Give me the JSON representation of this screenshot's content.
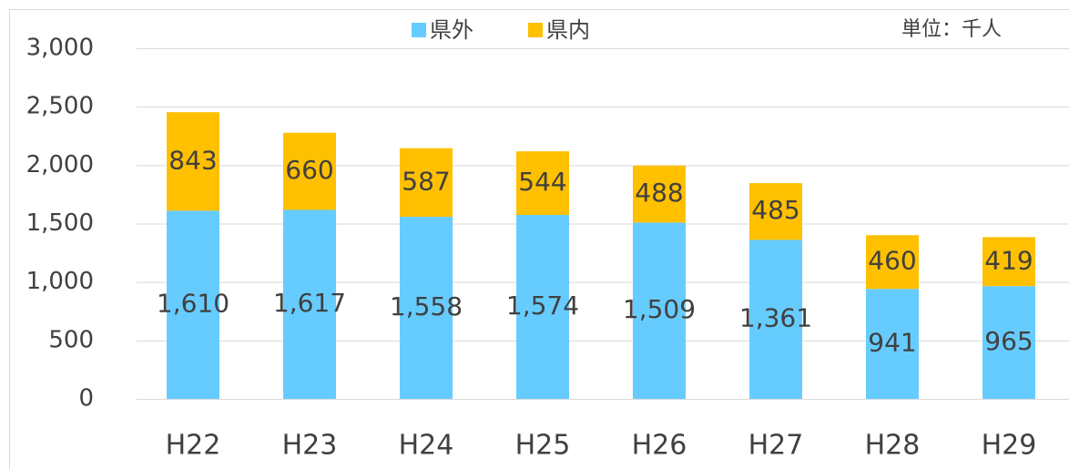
{
  "chart_data": {
    "type": "stacked_bar",
    "annotation": "単位：千人",
    "categories": [
      "H22",
      "H23",
      "H24",
      "H25",
      "H26",
      "H27",
      "H28",
      "H29"
    ],
    "series": [
      {
        "name": "県外",
        "color": "#66ccff",
        "values": [
          1610,
          1617,
          1558,
          1574,
          1509,
          1361,
          941,
          965
        ],
        "value_labels": [
          "1,610",
          "1,617",
          "1,558",
          "1,574",
          "1,509",
          "1,361",
          "941",
          "965"
        ]
      },
      {
        "name": "県内",
        "color": "#ffc000",
        "values": [
          843,
          660,
          587,
          544,
          488,
          485,
          460,
          419
        ],
        "value_labels": [
          "843",
          "660",
          "587",
          "544",
          "488",
          "485",
          "460",
          "419"
        ]
      }
    ],
    "ylim": [
      0,
      3000
    ],
    "yticks": [
      0,
      500,
      {
        "value": 1000,
        "label": "1,000"
      },
      {
        "value": 1500,
        "label": "1,500"
      },
      {
        "value": 2000,
        "label": "2,000"
      },
      {
        "value": 2500,
        "label": "2,500"
      },
      {
        "value": 3000,
        "label": "3,000"
      }
    ],
    "grid": true,
    "legend": "top"
  }
}
